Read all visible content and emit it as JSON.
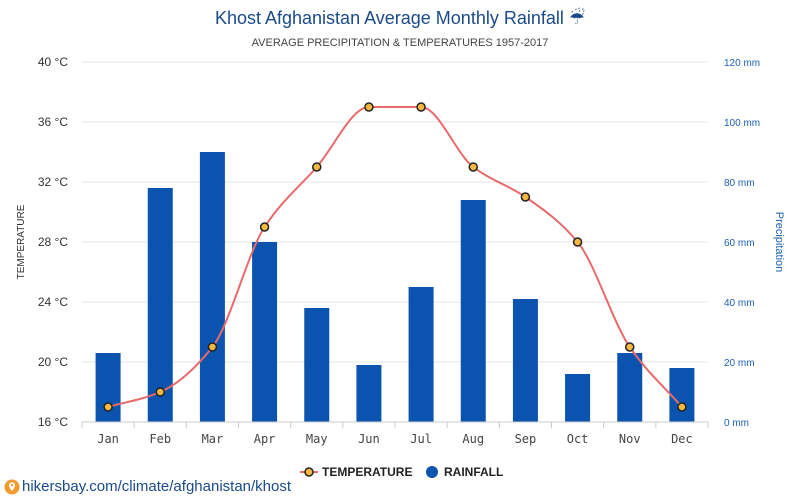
{
  "chart_data": {
    "type": "bar+line",
    "title": "Khost Afghanistan Average Monthly Rainfall",
    "title_icon": "umbrella-rain-icon",
    "title_icon_glyph": "☔",
    "subtitle": "AVERAGE PRECIPITATION & TEMPERATURES 1957-2017",
    "categories": [
      "Jan",
      "Feb",
      "Mar",
      "Apr",
      "May",
      "Jun",
      "Jul",
      "Aug",
      "Sep",
      "Oct",
      "Nov",
      "Dec"
    ],
    "series": [
      {
        "name": "TEMPERATURE",
        "kind": "line",
        "axis": "left",
        "unit": "°C",
        "color": "#e86a6a",
        "marker_fill": "#f5b942",
        "values": [
          17,
          18,
          21,
          29,
          33,
          37,
          37,
          33,
          31,
          28,
          21,
          17
        ]
      },
      {
        "name": "RAINFALL",
        "kind": "bar",
        "axis": "right",
        "unit": "mm",
        "color": "#0a54b0",
        "values": [
          23,
          78,
          90,
          60,
          38,
          19,
          45,
          74,
          41,
          16,
          23,
          18
        ]
      }
    ],
    "y_left": {
      "label": "TEMPERATURE",
      "range": [
        16,
        40
      ],
      "ticks": [
        16,
        20,
        24,
        28,
        32,
        36,
        40
      ],
      "tick_labels": [
        "16 °C",
        "20 °C",
        "24 °C",
        "28 °C",
        "32 °C",
        "36 °C",
        "40 °C"
      ]
    },
    "y_right": {
      "label": "Precipitation",
      "range": [
        0,
        120
      ],
      "ticks": [
        0,
        20,
        40,
        60,
        80,
        100,
        120
      ],
      "tick_labels": [
        "0 mm",
        "20 mm",
        "40 mm",
        "60 mm",
        "80 mm",
        "100 mm",
        "120 mm"
      ]
    },
    "grid": true,
    "legend": {
      "position": "bottom-center",
      "items": [
        "TEMPERATURE",
        "RAINFALL"
      ]
    }
  },
  "footer": {
    "icon": "map-pin-icon",
    "text": "hikersbay.com/climate/afghanistan/khost"
  }
}
